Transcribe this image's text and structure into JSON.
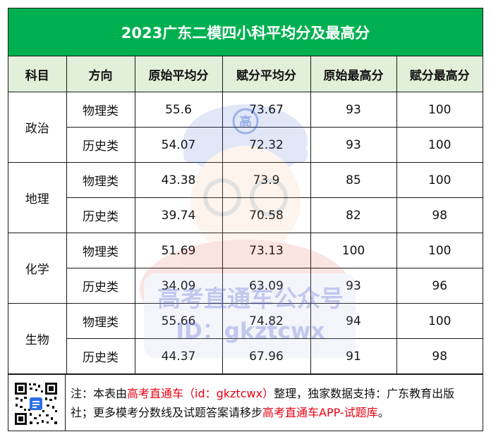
{
  "title": "2023广东二模四小科平均分及最高分",
  "headers": [
    "科目",
    "方向",
    "原始平均分",
    "赋分平均分",
    "原始最高分",
    "赋分最高分"
  ],
  "subjects": [
    {
      "name": "政治",
      "rows": [
        {
          "direction": "物理类",
          "raw_avg": "55.6",
          "scaled_avg": "73.67",
          "raw_max": "93",
          "scaled_max": "100"
        },
        {
          "direction": "历史类",
          "raw_avg": "54.07",
          "scaled_avg": "72.32",
          "raw_max": "93",
          "scaled_max": "100"
        }
      ]
    },
    {
      "name": "地理",
      "rows": [
        {
          "direction": "物理类",
          "raw_avg": "43.38",
          "scaled_avg": "73.9",
          "raw_max": "85",
          "scaled_max": "100"
        },
        {
          "direction": "历史类",
          "raw_avg": "39.74",
          "scaled_avg": "70.58",
          "raw_max": "82",
          "scaled_max": "98"
        }
      ]
    },
    {
      "name": "化学",
      "rows": [
        {
          "direction": "物理类",
          "raw_avg": "51.69",
          "scaled_avg": "73.13",
          "raw_max": "100",
          "scaled_max": "100"
        },
        {
          "direction": "历史类",
          "raw_avg": "34.09",
          "scaled_avg": "63.09",
          "raw_max": "93",
          "scaled_max": "96"
        }
      ]
    },
    {
      "name": "生物",
      "rows": [
        {
          "direction": "物理类",
          "raw_avg": "55.66",
          "scaled_avg": "74.82",
          "raw_max": "94",
          "scaled_max": "100"
        },
        {
          "direction": "历史类",
          "raw_avg": "44.37",
          "scaled_avg": "67.96",
          "raw_max": "91",
          "scaled_max": "98"
        }
      ]
    }
  ],
  "note": {
    "prefix": "注：本表由",
    "source_link": "高考直通车（id：gkztcwx）",
    "middle": "整理，独家数据支持：广东教育出版社；更多模考分数线及试题答案请移步",
    "app_link": "高考直通车APP-试题库",
    "suffix": "。"
  },
  "watermark": {
    "line1": "高考直通车公众号",
    "line2": "ID：gkztcwx",
    "badge": "高"
  },
  "colors": {
    "title_bg": "#00b050",
    "header_bg": "#e2efd9",
    "link_red": "#e60012"
  }
}
